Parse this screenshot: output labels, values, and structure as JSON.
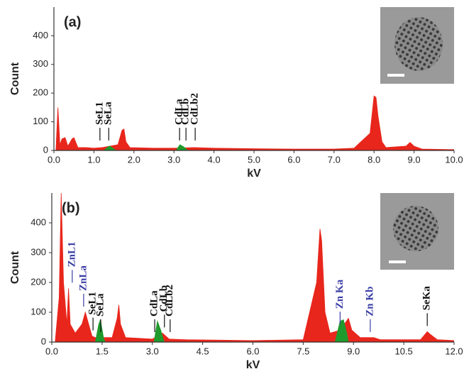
{
  "chart_data": [
    {
      "type": "area",
      "title": "(a)",
      "xlabel": "kV",
      "ylabel": "Count",
      "xlim": [
        0,
        10
      ],
      "ylim": [
        0,
        500
      ],
      "xticks": [
        {
          "value": 0,
          "label": "0.0"
        },
        {
          "value": 1,
          "label": "1.0"
        },
        {
          "value": 2,
          "label": "2.0"
        },
        {
          "value": 3,
          "label": "3.0"
        },
        {
          "value": 4,
          "label": "4.0"
        },
        {
          "value": 5,
          "label": "5.0"
        },
        {
          "value": 6,
          "label": "6.0"
        },
        {
          "value": 7,
          "label": "7.0"
        },
        {
          "value": 8,
          "label": "8.0"
        },
        {
          "value": 9,
          "label": "9.0"
        },
        {
          "value": 10,
          "label": "10.0"
        }
      ],
      "yticks": [
        0,
        100,
        200,
        300,
        400
      ],
      "series": [
        {
          "color": "#e8261c",
          "x": [
            0.05,
            0.1,
            0.15,
            0.2,
            0.28,
            0.35,
            0.45,
            0.5,
            0.6,
            0.8,
            1.0,
            1.2,
            1.4,
            1.6,
            1.7,
            1.75,
            1.8,
            1.9,
            2.5,
            3.0,
            3.5,
            4.0,
            5.0,
            6.0,
            7.0,
            7.5,
            7.9,
            8.0,
            8.05,
            8.1,
            8.2,
            8.3,
            8.8,
            8.9,
            9.0,
            9.2,
            10.0
          ],
          "values": [
            0,
            150,
            20,
            40,
            45,
            15,
            40,
            45,
            10,
            10,
            8,
            10,
            15,
            20,
            70,
            75,
            30,
            10,
            8,
            8,
            10,
            8,
            6,
            5,
            5,
            8,
            60,
            190,
            185,
            120,
            30,
            10,
            15,
            28,
            15,
            5,
            3
          ]
        },
        {
          "color": "#1f9a2c",
          "x": [
            1.25,
            1.35,
            1.4,
            1.5,
            1.55
          ],
          "values": [
            0,
            12,
            15,
            5,
            0
          ]
        },
        {
          "color": "#1f9a2c",
          "x": [
            3.05,
            3.15,
            3.25,
            3.35
          ],
          "values": [
            0,
            20,
            12,
            0
          ]
        }
      ],
      "annotations": [
        {
          "text": "SeL1",
          "x": 1.15,
          "color": "#111111"
        },
        {
          "text": "SeLa",
          "x": 1.37,
          "color": "#111111"
        },
        {
          "text": "CdLa",
          "x": 3.14,
          "color": "#111111"
        },
        {
          "text": "CdLb",
          "x": 3.3,
          "color": "#111111"
        },
        {
          "text": "CdLb2",
          "x": 3.53,
          "color": "#111111"
        }
      ]
    },
    {
      "type": "area",
      "title": "(b)",
      "xlabel": "kV",
      "ylabel": "Count",
      "xlim": [
        0,
        12
      ],
      "ylim": [
        0,
        500
      ],
      "xticks": [
        {
          "value": 0,
          "label": "0.0"
        },
        {
          "value": 1.5,
          "label": "1.5"
        },
        {
          "value": 3,
          "label": "3.0"
        },
        {
          "value": 4.5,
          "label": "4.5"
        },
        {
          "value": 6,
          "label": "6.0"
        },
        {
          "value": 7.5,
          "label": "7.5"
        },
        {
          "value": 9,
          "label": "9.0"
        },
        {
          "value": 10.5,
          "label": "10.5"
        },
        {
          "value": 12,
          "label": "12.0"
        }
      ],
      "yticks": [
        0,
        100,
        200,
        300,
        400
      ],
      "series": [
        {
          "color": "#e8261c",
          "x": [
            0.1,
            0.22,
            0.28,
            0.35,
            0.45,
            0.5,
            0.55,
            0.7,
            0.9,
            1.0,
            1.05,
            1.2,
            1.3,
            1.8,
            1.95,
            2.0,
            2.05,
            2.2,
            3.0,
            3.3,
            3.5,
            4.0,
            6.0,
            7.5,
            7.9,
            8.0,
            8.05,
            8.15,
            8.3,
            8.6,
            8.85,
            8.95,
            9.2,
            9.6,
            9.8,
            11.0,
            11.2,
            11.3,
            11.5,
            12.0
          ],
          "values": [
            0,
            150,
            500,
            200,
            60,
            180,
            60,
            30,
            60,
            100,
            80,
            20,
            15,
            15,
            80,
            125,
            60,
            15,
            10,
            30,
            10,
            8,
            5,
            8,
            200,
            380,
            340,
            100,
            30,
            40,
            80,
            40,
            15,
            15,
            8,
            8,
            35,
            25,
            8,
            5
          ]
        },
        {
          "color": "#1f9a2c",
          "x": [
            1.3,
            1.4,
            1.45,
            1.55,
            1.6
          ],
          "values": [
            0,
            60,
            75,
            10,
            0
          ]
        },
        {
          "color": "#1f9a2c",
          "x": [
            3.05,
            3.15,
            3.25,
            3.35
          ],
          "values": [
            0,
            70,
            40,
            0
          ]
        },
        {
          "color": "#1f9a2c",
          "x": [
            8.45,
            8.6,
            8.7,
            8.8,
            8.85
          ],
          "values": [
            0,
            70,
            75,
            30,
            0
          ]
        }
      ],
      "annotations": [
        {
          "text": "ZnL1",
          "x": 0.61,
          "color": "#3b3fa6"
        },
        {
          "text": "ZnLa",
          "x": 0.95,
          "color": "#3b3fa6"
        },
        {
          "text": "SeL1",
          "x": 1.23,
          "color": "#111111"
        },
        {
          "text": "SeLa",
          "x": 1.46,
          "color": "#111111"
        },
        {
          "text": "CdLa",
          "x": 3.07,
          "color": "#111111"
        },
        {
          "text": "CdLb",
          "x": 3.36,
          "color": "#111111"
        },
        {
          "text": "CdLb2",
          "x": 3.53,
          "color": "#111111"
        },
        {
          "text": "Zn Ka",
          "x": 8.6,
          "color": "#3b3fa6"
        },
        {
          "text": "Zn Kb",
          "x": 9.5,
          "color": "#3b3fa6"
        },
        {
          "text": "SeKa",
          "x": 11.2,
          "color": "#111111"
        }
      ]
    }
  ]
}
